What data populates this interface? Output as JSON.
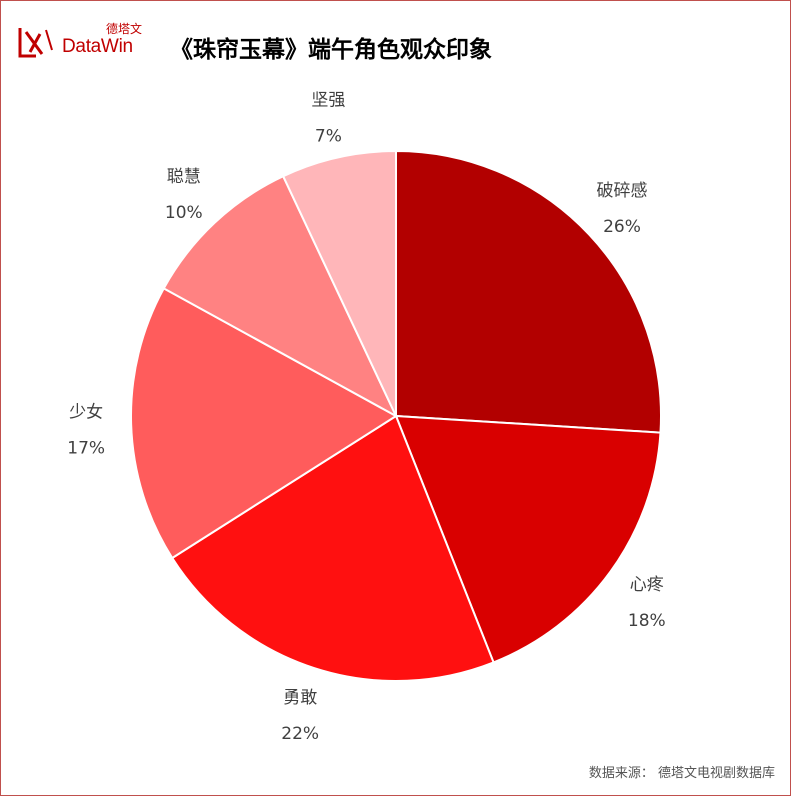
{
  "brand": {
    "logo_cn": "德塔文",
    "logo_en": "DataWin"
  },
  "title": "《珠帘玉幕》端午角色观众印象",
  "source": "数据来源：  德塔文电视剧数据库",
  "colors": {
    "border": "#c0504d",
    "brand": "#c00000"
  },
  "chart_data": {
    "type": "pie",
    "title": "《珠帘玉幕》端午角色观众印象",
    "slices": [
      {
        "label": "破碎感",
        "value": 26,
        "value_label": "26%",
        "color": "#b20000"
      },
      {
        "label": "心疼",
        "value": 18,
        "value_label": "18%",
        "color": "#d90000"
      },
      {
        "label": "勇敢",
        "value": 22,
        "value_label": "22%",
        "color": "#ff1010"
      },
      {
        "label": "少女",
        "value": 17,
        "value_label": "17%",
        "color": "#ff5c5c"
      },
      {
        "label": "聪慧",
        "value": 10,
        "value_label": "10%",
        "color": "#ff8282"
      },
      {
        "label": "坚强",
        "value": 7,
        "value_label": "7%",
        "color": "#ffb6b9"
      }
    ],
    "start_angle": "12 o'clock",
    "direction": "clockwise",
    "legend": "none"
  }
}
